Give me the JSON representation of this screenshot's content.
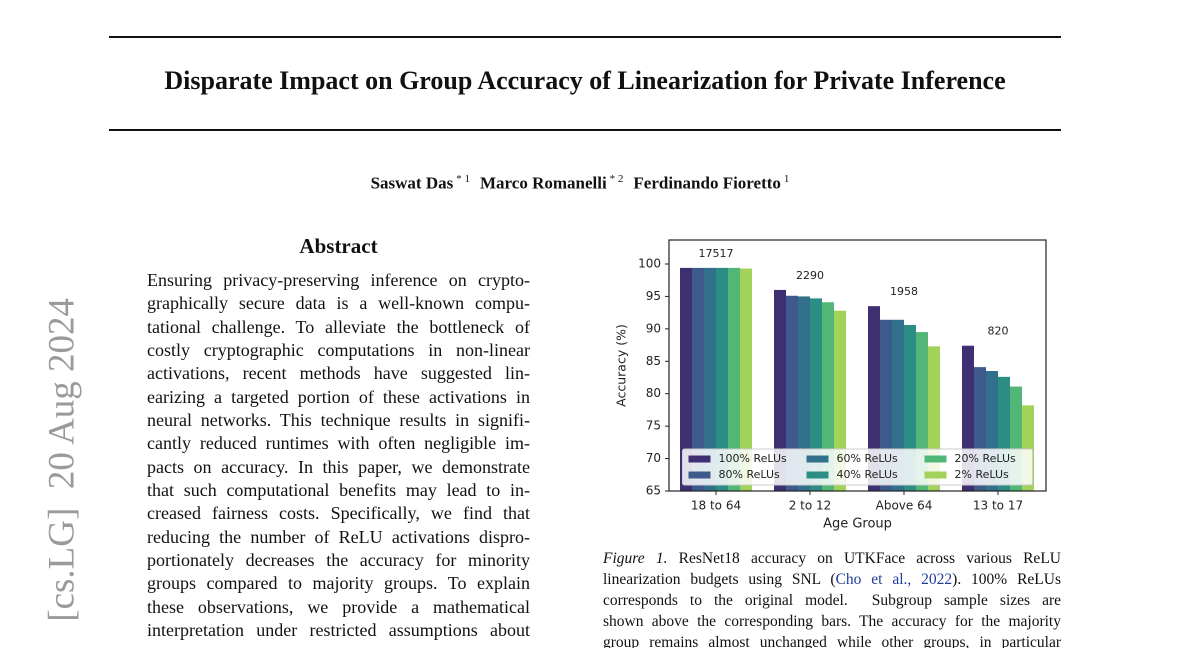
{
  "arxiv_stamp": "[cs.LG]  20 Aug 2024",
  "title": "Disparate Impact on Group Accuracy of Linearization for Private Inference",
  "authors": [
    {
      "name": "Saswat Das",
      "affil": "* 1"
    },
    {
      "name": "Marco Romanelli",
      "affil": "* 2"
    },
    {
      "name": "Ferdinando Fioretto",
      "affil": "1"
    }
  ],
  "abstract": {
    "heading": "Abstract",
    "lines": [
      "Ensuring privacy-preserving inference on crypto-",
      "graphically secure data is a well-known compu-",
      "tational challenge. To alleviate the bottleneck of",
      "costly cryptographic computations in non-linear",
      "activations, recent methods have suggested lin-",
      "earizing a targeted portion of these activations in",
      "neural networks. This technique results in signifi-",
      "cantly reduced runtimes with often negligible im-",
      "pacts on accuracy. In this paper, we demonstrate",
      "that such computational benefits may lead to in-",
      "creased fairness costs. Specifically, we find that",
      "reducing the number of ReLU activations dispro-",
      "portionately decreases the accuracy for minority",
      "groups compared to majority groups. To explain",
      "these observations, we provide a mathematical",
      "interpretation under restricted assumptions about"
    ]
  },
  "figure": {
    "caption": {
      "label": "Figure 1.",
      "first": " ResNet18 accuracy on UTKFace across various ReLU",
      "second": [
        "linearization budgets using SNL (",
        "Cho et al., 2022",
        "). 100% ReLUs"
      ],
      "rest": [
        "corresponds to the original model.  Subgroup sample sizes are",
        "shown above the corresponding bars. The accuracy for the majority",
        "group remains almost unchanged while other groups, in particular"
      ]
    }
  },
  "chart_data": {
    "type": "bar",
    "xlabel": "Age Group",
    "ylabel": "Accuracy (%)",
    "categories": [
      "18 to 64",
      "2 to 12",
      "Above 64",
      "13 to 17"
    ],
    "sample_sizes": [
      17517,
      2290,
      1958,
      820
    ],
    "series": [
      {
        "name": "100% ReLUs",
        "color": "#3d2f72",
        "values": [
          99.4,
          96.0,
          93.5,
          87.4
        ]
      },
      {
        "name": "80% ReLUs",
        "color": "#3e5a8c",
        "values": [
          99.4,
          95.1,
          91.4,
          84.1
        ]
      },
      {
        "name": "60% ReLUs",
        "color": "#33708b",
        "values": [
          99.4,
          95.0,
          91.4,
          83.5
        ]
      },
      {
        "name": "40% ReLUs",
        "color": "#2c8d85",
        "values": [
          99.4,
          94.7,
          90.6,
          82.6
        ]
      },
      {
        "name": "20% ReLUs",
        "color": "#52b677",
        "values": [
          99.4,
          94.1,
          89.5,
          81.1
        ]
      },
      {
        "name": "2% ReLUs",
        "color": "#a2d25a",
        "values": [
          99.3,
          92.8,
          87.3,
          78.2
        ]
      }
    ],
    "ylim": [
      65,
      103.7
    ],
    "yticks": [
      65,
      70,
      75,
      80,
      85,
      90,
      95,
      100
    ],
    "legend": "lower center",
    "legend_columns": 3
  }
}
